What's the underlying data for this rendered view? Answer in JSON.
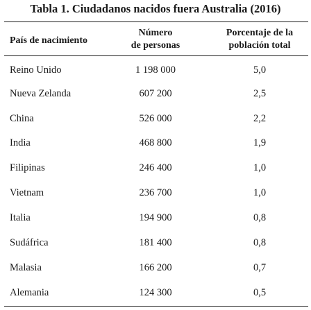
{
  "table": {
    "title": "Tabla 1. Ciudadanos nacidos fuera Australia (2016)",
    "headers": {
      "country": "País de nacimiento",
      "count_line1": "Número",
      "count_line2": "de personas",
      "pct_line1": "Porcentaje de la",
      "pct_line2": "población total"
    },
    "rows": [
      {
        "country": "Reino Unido",
        "count": "1 198 000",
        "pct": "5,0"
      },
      {
        "country": "Nueva Zelanda",
        "count": "607 200",
        "pct": "2,5"
      },
      {
        "country": "China",
        "count": "526 000",
        "pct": "2,2"
      },
      {
        "country": "India",
        "count": "468 800",
        "pct": "1,9"
      },
      {
        "country": "Filipinas",
        "count": "246 400",
        "pct": "1,0"
      },
      {
        "country": "Vietnam",
        "count": "236 700",
        "pct": "1,0"
      },
      {
        "country": "Italia",
        "count": "194 900",
        "pct": "0,8"
      },
      {
        "country": "Sudáfrica",
        "count": "181 400",
        "pct": "0,8"
      },
      {
        "country": "Malasia",
        "count": "166 200",
        "pct": "0,7"
      },
      {
        "country": "Alemania",
        "count": "124 300",
        "pct": "0,5"
      }
    ]
  }
}
